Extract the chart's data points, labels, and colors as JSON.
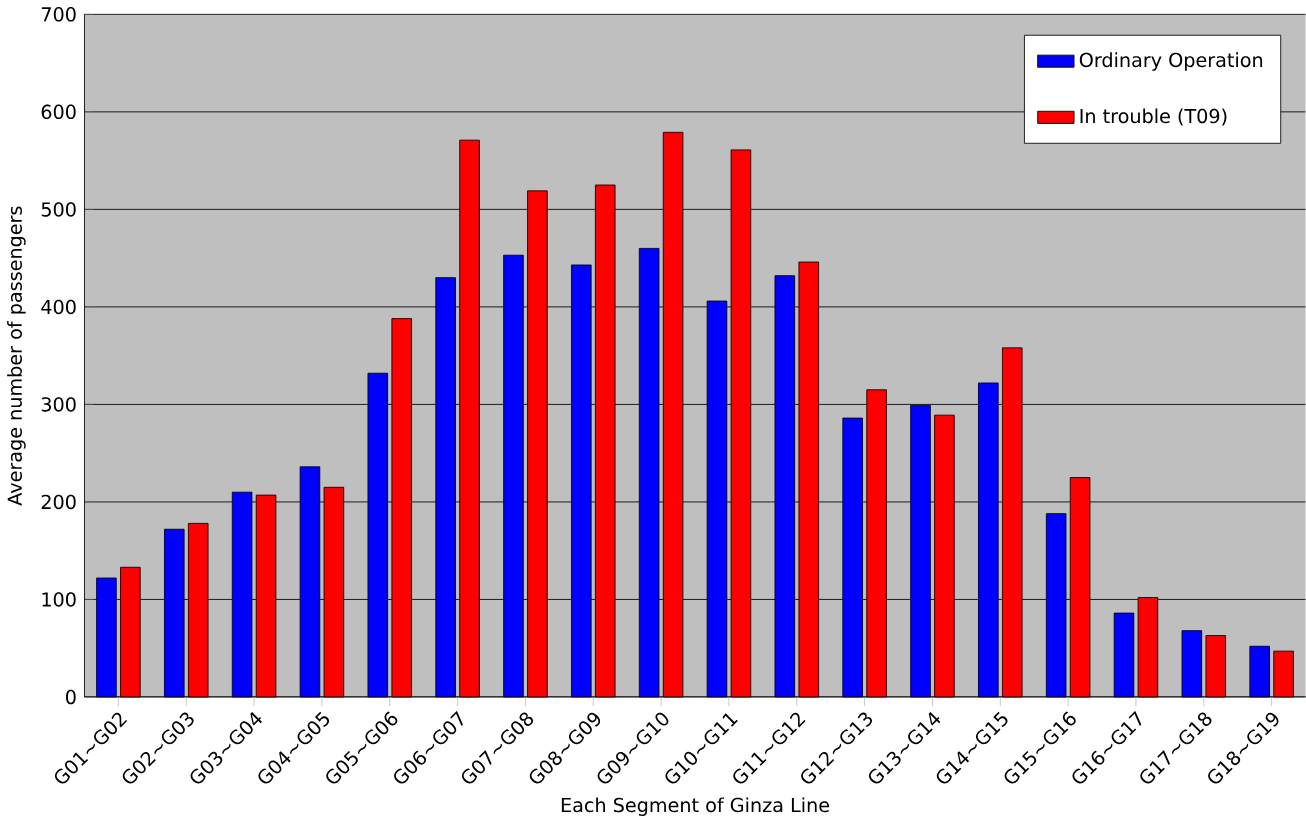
{
  "chart_data": {
    "type": "bar",
    "xlabel": "Each Segment of Ginza Line",
    "ylabel": "Average number of passengers",
    "categories": [
      "G01~G02",
      "G02~G03",
      "G03~G04",
      "G04~G05",
      "G05~G06",
      "G06~G07",
      "G07~G08",
      "G08~G09",
      "G09~G10",
      "G10~G11",
      "G11~G12",
      "G12~G13",
      "G13~G14",
      "G14~G15",
      "G15~G16",
      "G16~G17",
      "G17~G18",
      "G18~G19"
    ],
    "series": [
      {
        "name": "Ordinary Operation",
        "color": "#0000ff",
        "values": [
          122,
          172,
          210,
          236,
          332,
          430,
          453,
          443,
          460,
          406,
          432,
          286,
          299,
          322,
          188,
          86,
          68,
          52
        ]
      },
      {
        "name": "In trouble (T09)",
        "color": "#ff0000",
        "values": [
          133,
          178,
          207,
          215,
          388,
          571,
          519,
          525,
          579,
          561,
          446,
          315,
          289,
          358,
          225,
          102,
          63,
          47
        ]
      }
    ],
    "ylim": [
      0,
      700
    ],
    "yticks": [
      0,
      100,
      200,
      300,
      400,
      500,
      600,
      700
    ],
    "grid": "y",
    "legend": "top right"
  }
}
